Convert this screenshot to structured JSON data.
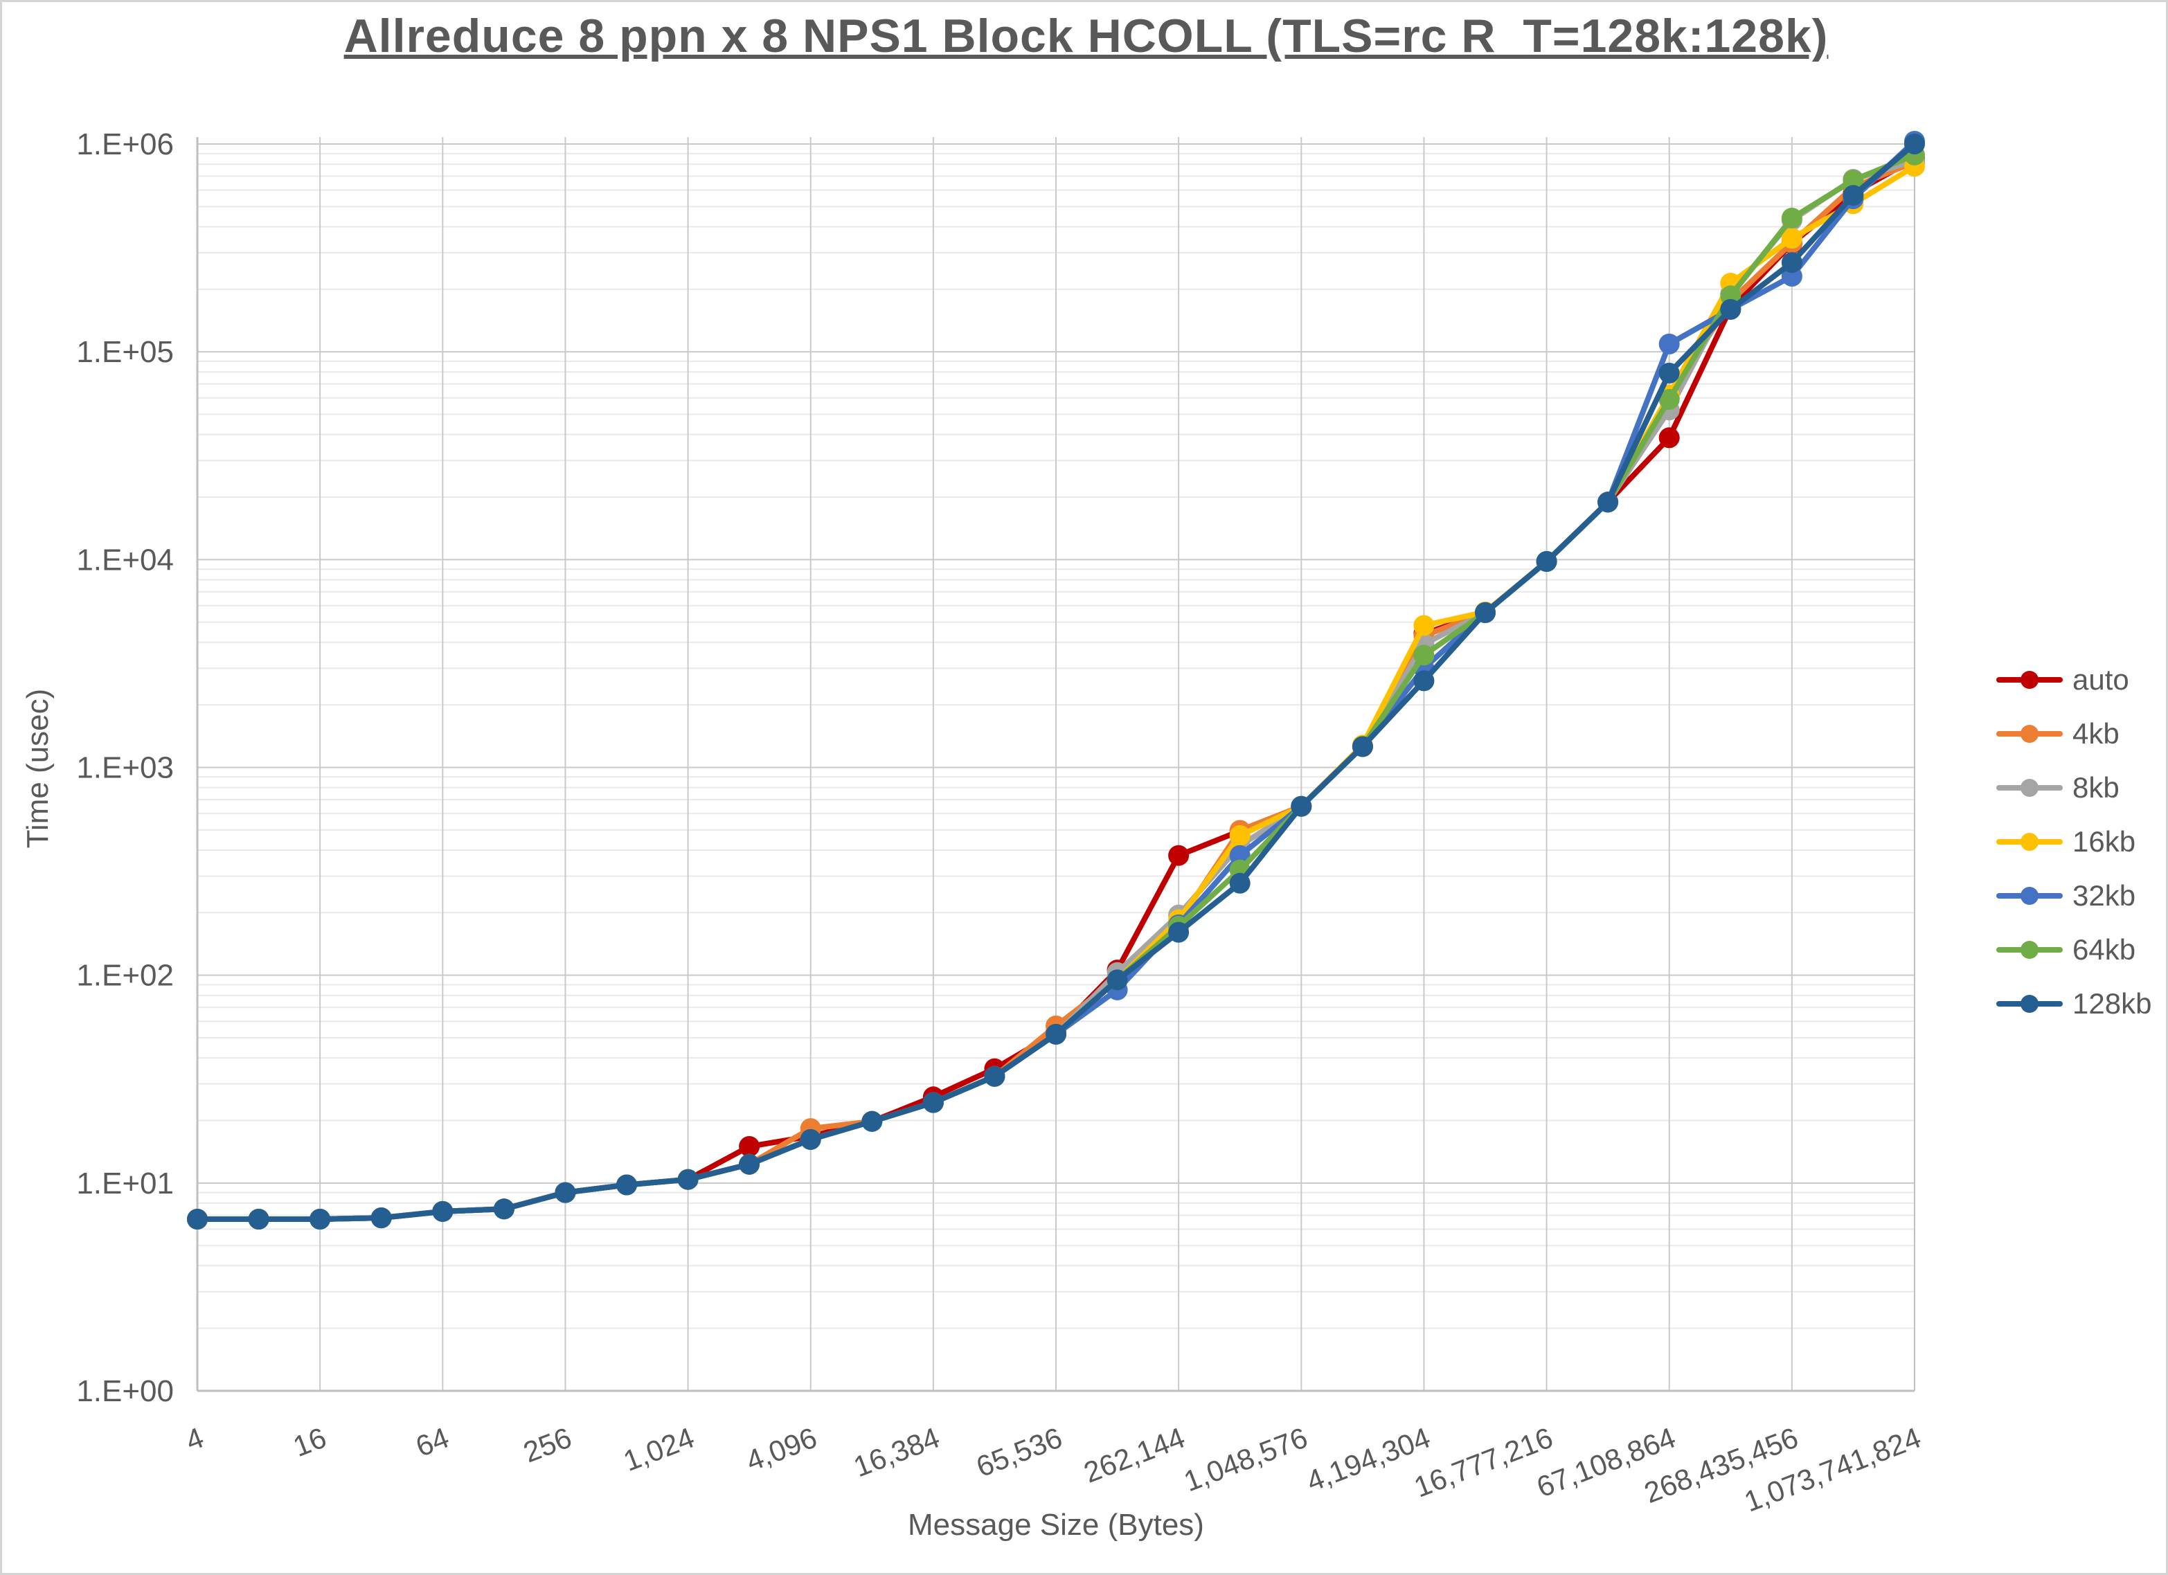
{
  "chart_data": {
    "type": "line",
    "title": "Allreduce 8 ppn x 8 NPS1 Block HCOLL (TLS=rc R_T=128k:128k)",
    "xlabel": "Message Size (Bytes)",
    "ylabel": "Time (usec)",
    "x_scale": "log2",
    "y_scale": "log10",
    "x_range": [
      4,
      1073741824
    ],
    "y_range": [
      1,
      1000000
    ],
    "grid": true,
    "legend_position": "right",
    "x_tick_labels": [
      "4",
      "16",
      "64",
      "256",
      "1,024",
      "4,096",
      "16,384",
      "65,536",
      "262,144",
      "1,048,576",
      "4,194,304",
      "16,777,216",
      "67,108,864",
      "268,435,456",
      "1,073,741,824"
    ],
    "y_tick_labels": [
      "1.E+00",
      "1.E+01",
      "1.E+02",
      "1.E+03",
      "1.E+04",
      "1.E+05",
      "1.E+06"
    ],
    "sizes": [
      4,
      8,
      16,
      32,
      64,
      128,
      256,
      512,
      1024,
      2048,
      4096,
      8192,
      16384,
      32768,
      65536,
      131072,
      262144,
      524288,
      1048576,
      2097152,
      4194304,
      8388608,
      16777216,
      33554432,
      67108864,
      134217728,
      268435456,
      536870912,
      1073741824
    ],
    "series": [
      {
        "name": "auto",
        "color": "#C00000",
        "values": [
          6.7,
          6.7,
          6.7,
          6.8,
          7.3,
          7.5,
          9.0,
          9.8,
          10.4,
          15.0,
          16.8,
          19.8,
          26.0,
          35.5,
          53,
          106,
          377,
          495,
          650,
          1260,
          4400,
          5560,
          9800,
          18900,
          38600,
          163000,
          332000,
          580000,
          850000
        ]
      },
      {
        "name": "4kb",
        "color": "#ED7D31",
        "values": [
          6.7,
          6.7,
          6.7,
          6.8,
          7.3,
          7.5,
          9.0,
          9.8,
          10.4,
          12.3,
          18.3,
          19.8,
          24.4,
          32.6,
          57,
          96,
          180,
          498,
          650,
          1260,
          4300,
          5560,
          9800,
          18900,
          60000,
          175000,
          335000,
          620000,
          820000
        ]
      },
      {
        "name": "8kb",
        "color": "#A5A5A5",
        "values": [
          6.7,
          6.7,
          6.7,
          6.8,
          7.3,
          7.5,
          9.0,
          9.8,
          10.4,
          12.3,
          16.2,
          19.8,
          24.4,
          32.6,
          52,
          103,
          195,
          420,
          650,
          1260,
          3920,
          5560,
          9800,
          18900,
          52500,
          190000,
          430000,
          676000,
          830000
        ]
      },
      {
        "name": "16kb",
        "color": "#FFC000",
        "values": [
          6.7,
          6.7,
          6.7,
          6.8,
          7.3,
          7.5,
          9.0,
          9.8,
          10.4,
          12.3,
          16.2,
          19.8,
          24.4,
          32.6,
          52,
          95,
          185,
          470,
          650,
          1280,
          4820,
          5600,
          9800,
          18900,
          62000,
          214000,
          352000,
          516000,
          782000
        ]
      },
      {
        "name": "32kb",
        "color": "#4472C4",
        "values": [
          6.7,
          6.7,
          6.7,
          6.8,
          7.3,
          7.5,
          9.0,
          9.8,
          10.4,
          12.3,
          16.2,
          19.8,
          24.4,
          32.6,
          52,
          85,
          175,
          377,
          650,
          1260,
          3000,
          5560,
          9800,
          18900,
          109000,
          160000,
          231000,
          545000,
          1031000
        ]
      },
      {
        "name": "64kb",
        "color": "#70AD47",
        "values": [
          6.7,
          6.7,
          6.7,
          6.8,
          7.3,
          7.5,
          9.0,
          9.8,
          10.4,
          12.3,
          16.2,
          19.8,
          24.4,
          32.6,
          52,
          95,
          172,
          321,
          650,
          1260,
          3470,
          5560,
          9800,
          18900,
          59000,
          186000,
          440000,
          670000,
          885000
        ]
      },
      {
        "name": "128kb",
        "color": "#255E91",
        "values": [
          6.7,
          6.7,
          6.7,
          6.8,
          7.3,
          7.5,
          9.0,
          9.8,
          10.4,
          12.3,
          16.2,
          19.8,
          24.4,
          32.6,
          52,
          95,
          161,
          277,
          650,
          1260,
          2610,
          5560,
          9800,
          18900,
          79000,
          160000,
          269000,
          566000,
          1000000
        ]
      }
    ]
  },
  "colors": {
    "text": "#595959",
    "grid_major": "#C9C9C9",
    "grid_minor": "#E9E9E9",
    "axis_line": "#BFBFBF",
    "background": "#FFFFFF"
  }
}
